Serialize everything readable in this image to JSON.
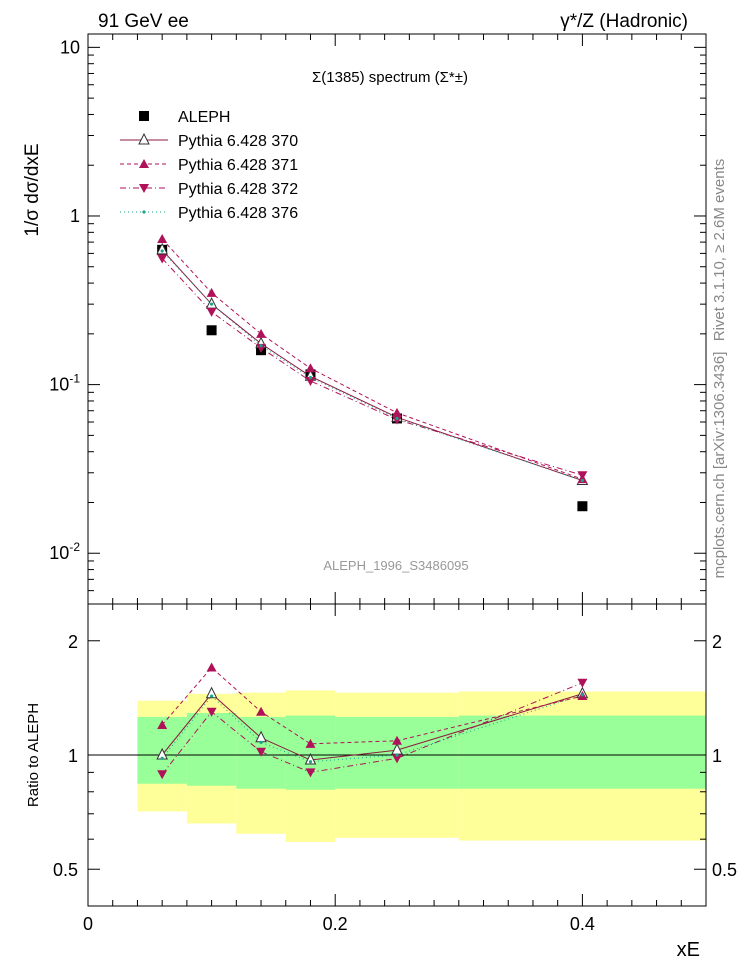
{
  "header": {
    "left": "91 GeV ee",
    "right": "γ*/Z (Hadronic)"
  },
  "side_text": {
    "rivet": "Rivet 3.1.10, ≥ 2.6M events",
    "mcplots": "mcplots.cern.ch [arXiv:1306.3436]"
  },
  "chart_data": [
    {
      "type": "line",
      "title": "Σ(1385) spectrum (Σ*±)",
      "ylabel": "1/σ dσ/dxE",
      "yscale": "log",
      "ylim": [
        0.005,
        12
      ],
      "xlim": [
        0,
        0.5
      ],
      "y_ticks": [
        "10^-2",
        "10^-1",
        "1",
        "10"
      ],
      "watermark": "ALEPH_1996_S3486095",
      "legend_position": "top-left",
      "x": [
        0.06,
        0.1,
        0.14,
        0.18,
        0.25,
        0.4
      ],
      "series": [
        {
          "name": "ALEPH",
          "style": "data",
          "color": "#000000",
          "marker": "square",
          "values": [
            0.63,
            0.21,
            0.16,
            0.115,
            0.063,
            0.019
          ]
        },
        {
          "name": "Pythia 6.428 370",
          "style": "solid",
          "color": "#8b1a3e",
          "marker": "open-triangle-up",
          "values": [
            0.63,
            0.3,
            0.175,
            0.112,
            0.064,
            0.027
          ]
        },
        {
          "name": "Pythia 6.428 371",
          "style": "dashed",
          "color": "#b0125a",
          "marker": "triangle-up",
          "values": [
            0.73,
            0.35,
            0.2,
            0.125,
            0.068,
            0.0275
          ]
        },
        {
          "name": "Pythia 6.428 372",
          "style": "dashdot",
          "color": "#b0125a",
          "marker": "triangle-down",
          "values": [
            0.56,
            0.27,
            0.165,
            0.105,
            0.062,
            0.029
          ]
        },
        {
          "name": "Pythia 6.428 376",
          "style": "dotted",
          "color": "#17a589",
          "marker": "dot",
          "values": [
            0.62,
            0.3,
            0.17,
            0.11,
            0.063,
            0.027
          ]
        }
      ]
    },
    {
      "type": "line",
      "ylabel": "Ratio to ALEPH",
      "xlabel": "xE",
      "yscale": "log",
      "ylim": [
        0.4,
        2.5
      ],
      "xlim": [
        0,
        0.5
      ],
      "y_ticks": [
        "0.5",
        "1",
        "2"
      ],
      "x_ticks": [
        "0",
        "0.2",
        "0.4"
      ],
      "x": [
        0.06,
        0.1,
        0.14,
        0.18,
        0.25,
        0.4
      ],
      "bands": [
        {
          "x0": 0.04,
          "x1": 0.08,
          "inner": [
            0.84,
            1.26
          ],
          "outer": [
            0.71,
            1.39
          ]
        },
        {
          "x0": 0.08,
          "x1": 0.12,
          "inner": [
            0.83,
            1.29
          ],
          "outer": [
            0.66,
            1.45
          ]
        },
        {
          "x0": 0.12,
          "x1": 0.16,
          "inner": [
            0.815,
            1.26
          ],
          "outer": [
            0.62,
            1.46
          ]
        },
        {
          "x0": 0.16,
          "x1": 0.2,
          "inner": [
            0.81,
            1.27
          ],
          "outer": [
            0.59,
            1.48
          ]
        },
        {
          "x0": 0.2,
          "x1": 0.3,
          "inner": [
            0.815,
            1.26
          ],
          "outer": [
            0.605,
            1.46
          ]
        },
        {
          "x0": 0.3,
          "x1": 0.5,
          "inner": [
            0.815,
            1.27
          ],
          "outer": [
            0.595,
            1.47
          ]
        }
      ],
      "series": [
        {
          "name": "Pythia 6.428 370",
          "values": [
            1.0,
            1.45,
            1.11,
            0.97,
            1.03,
            1.45
          ]
        },
        {
          "name": "Pythia 6.428 371",
          "values": [
            1.2,
            1.7,
            1.3,
            1.07,
            1.09,
            1.43
          ]
        },
        {
          "name": "Pythia 6.428 372",
          "values": [
            0.89,
            1.3,
            1.02,
            0.9,
            0.98,
            1.55
          ]
        },
        {
          "name": "Pythia 6.428 376",
          "values": [
            0.98,
            1.43,
            1.08,
            0.96,
            1.0,
            1.44
          ]
        }
      ]
    }
  ]
}
